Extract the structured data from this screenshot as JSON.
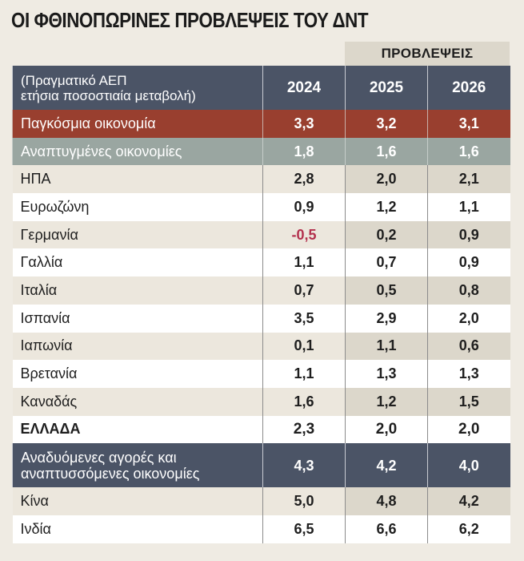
{
  "title": "ΟΙ ΦΘΙΝΟΠΩΡΙΝΕΣ ΠΡΟΒΛΕΨΕΙΣ ΤΟΥ ΔΝΤ",
  "forecast_label": "ΠΡΟΒΛΕΨΕΙΣ",
  "header": {
    "label_line1": "(Πραγματικό ΑΕΠ",
    "label_line2": "ετήσια ποσοστιαία μεταβολή)",
    "years": [
      "2024",
      "2025",
      "2026"
    ]
  },
  "colors": {
    "header": "#4b5466",
    "world": "#993f2f",
    "advanced": "#9aa6a1",
    "negative": "#b3304d"
  },
  "rows": [
    {
      "name": "Παγκόσμια οικονομία",
      "values": [
        "3,3",
        "3,2",
        "3,1"
      ]
    },
    {
      "name": "Αναπτυγμένες οικονομίες",
      "values": [
        "1,8",
        "1,6",
        "1,6"
      ]
    },
    {
      "name": "ΗΠΑ",
      "values": [
        "2,8",
        "2,0",
        "2,1"
      ]
    },
    {
      "name": "Ευρωζώνη",
      "values": [
        "0,9",
        "1,2",
        "1,1"
      ]
    },
    {
      "name": "Γερμανία",
      "values": [
        "-0,5",
        "0,2",
        "0,9"
      ]
    },
    {
      "name": "Γαλλία",
      "values": [
        "1,1",
        "0,7",
        "0,9"
      ]
    },
    {
      "name": "Ιταλία",
      "values": [
        "0,7",
        "0,5",
        "0,8"
      ]
    },
    {
      "name": "Ισπανία",
      "values": [
        "3,5",
        "2,9",
        "2,0"
      ]
    },
    {
      "name": "Ιαπωνία",
      "values": [
        "0,1",
        "1,1",
        "0,6"
      ]
    },
    {
      "name": "Βρετανία",
      "values": [
        "1,1",
        "1,3",
        "1,3"
      ]
    },
    {
      "name": "Καναδάς",
      "values": [
        "1,6",
        "1,2",
        "1,5"
      ]
    },
    {
      "name": "ΕΛΛΑΔΑ",
      "values": [
        "2,3",
        "2,0",
        "2,0"
      ]
    },
    {
      "name_line1": "Αναδυόμενες αγορές και",
      "name_line2": "αναπτυσσόμενες οικονομίες",
      "values": [
        "4,3",
        "4,2",
        "4,0"
      ]
    },
    {
      "name": "Κίνα",
      "values": [
        "5,0",
        "4,8",
        "4,2"
      ]
    },
    {
      "name": "Ινδία",
      "values": [
        "6,5",
        "6,6",
        "6,2"
      ]
    }
  ]
}
